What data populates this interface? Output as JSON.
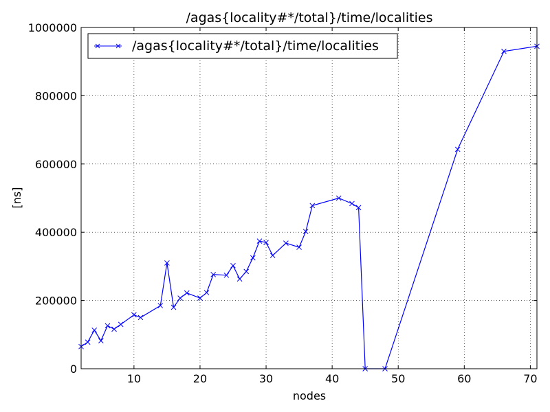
{
  "chart_data": {
    "type": "line",
    "title": "/agas{locality#*/total}/time/localities",
    "xlabel": "nodes",
    "ylabel": "[ns]",
    "xlim": [
      2,
      71
    ],
    "ylim": [
      0,
      1000000
    ],
    "xticks": [
      10,
      20,
      30,
      40,
      50,
      60,
      70
    ],
    "yticks": [
      0,
      200000,
      400000,
      600000,
      800000,
      1000000
    ],
    "grid": true,
    "legend_position": "top-left",
    "series": [
      {
        "name": "/agas{locality#*/total}/time/localities",
        "color": "#0000ff",
        "marker": "x",
        "x": [
          2,
          3,
          4,
          5,
          6,
          7,
          8,
          10,
          11,
          14,
          15,
          16,
          17,
          18,
          20,
          21,
          22,
          24,
          25,
          26,
          27,
          28,
          29,
          30,
          31,
          33,
          35,
          36,
          37,
          41,
          43,
          44,
          45,
          48,
          59,
          66,
          71
        ],
        "y": [
          65000,
          78000,
          113000,
          82000,
          126000,
          116000,
          130000,
          158000,
          150000,
          185000,
          310000,
          180000,
          207000,
          222000,
          207000,
          223000,
          276000,
          274000,
          302000,
          263000,
          285000,
          325000,
          374000,
          370000,
          332000,
          368000,
          356000,
          402000,
          478000,
          500000,
          484000,
          472000,
          0,
          0,
          643000,
          930000,
          945000
        ]
      }
    ]
  }
}
